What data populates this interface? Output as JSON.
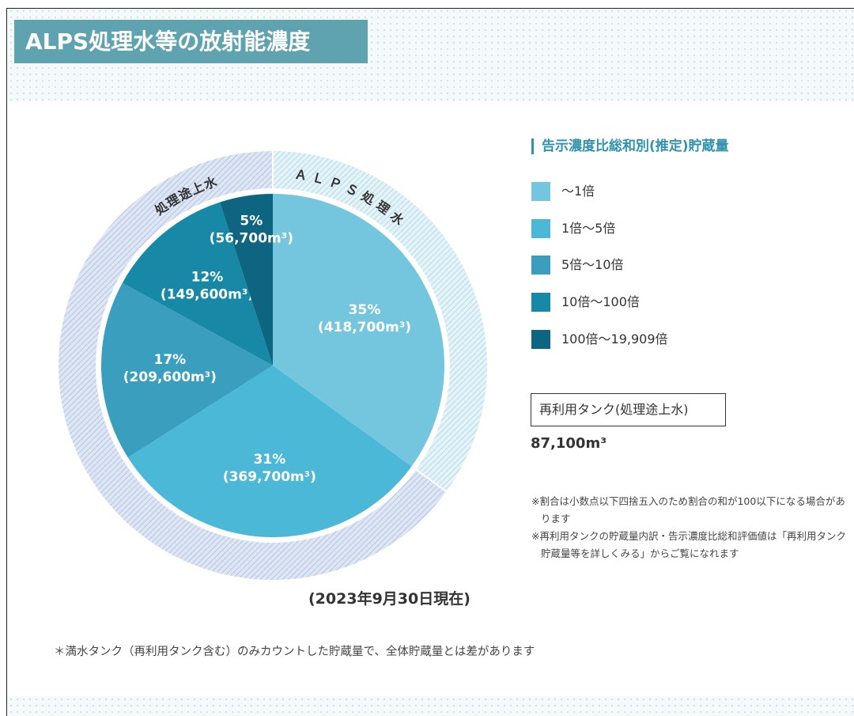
{
  "header": {
    "title": "ALPS処理水等の放射能濃度"
  },
  "chart_data": {
    "type": "pie",
    "legend_title": "告示濃度比総和別(推定)貯蔵量",
    "categories": [
      "～1倍",
      "1倍～5倍",
      "5倍～10倍",
      "10倍～100倍",
      "100倍～19,909倍"
    ],
    "values": [
      35,
      31,
      17,
      12,
      5
    ],
    "value_labels": [
      "35%",
      "31%",
      "17%",
      "12%",
      "5%"
    ],
    "volume_labels": [
      "(418,700m³)",
      "(369,700m³)",
      "(209,600m³)",
      "(149,600m³)",
      "(56,700m³)"
    ],
    "colors": [
      "#74c6de",
      "#4bb8d7",
      "#3a9ebf",
      "#1888a7",
      "#0d6581"
    ],
    "outer_ring": [
      {
        "label": "ＡＬＰＳ処理水",
        "value": 35
      },
      {
        "label": "処理途上水",
        "value": 65
      }
    ],
    "date_note": "(2023年9月30日現在)"
  },
  "reuse_tank": {
    "label": "再利用タンク(処理途上水)",
    "value": "87,100m³"
  },
  "notes": [
    "※割合は小数点以下四捨五入のため割合の和が100以下になる場合があります",
    "※再利用タンクの貯蔵量内訳・告示濃度比総和評価値は「再利用タンク貯蔵量等を詳しくみる」からご覧になれます"
  ],
  "footnote": "＊満水タンク（再利用タンク含む）のみカウントした貯蔵量で、全体貯蔵量とは差があります"
}
